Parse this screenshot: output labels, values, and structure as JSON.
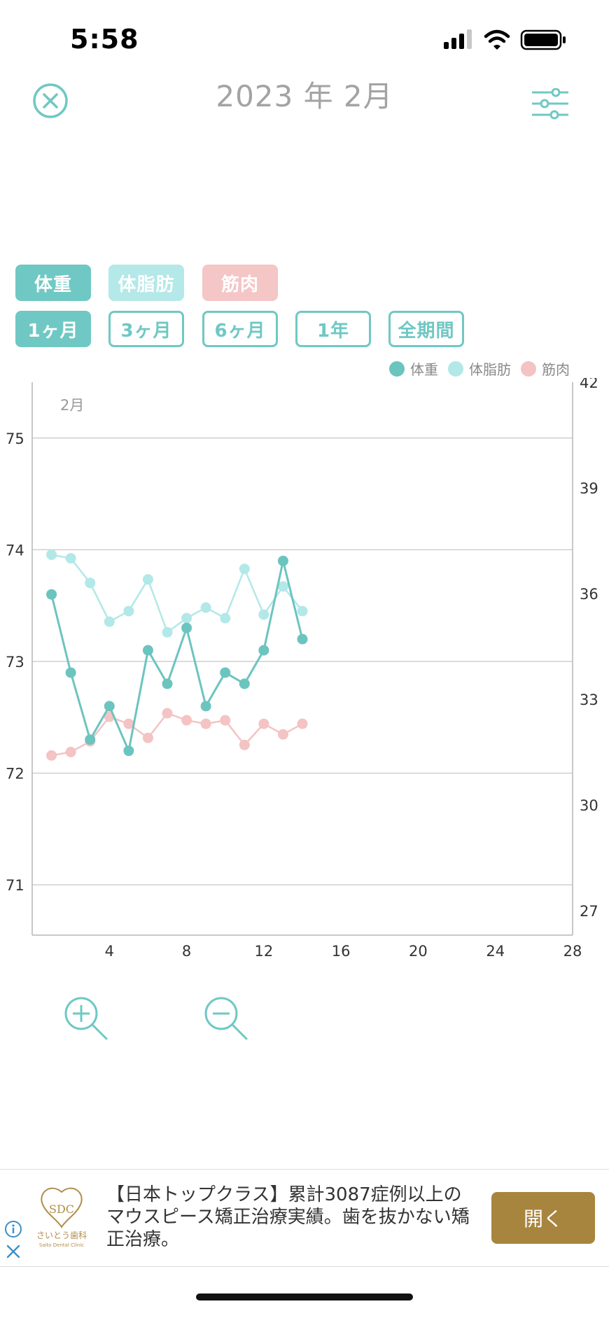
{
  "status": {
    "time": "5:58"
  },
  "header": {
    "title": "2023 年 2月"
  },
  "metric_chips": [
    {
      "label": "体重",
      "color": "#6fc8c3",
      "active": true
    },
    {
      "label": "体脂肪",
      "color": "#b5e8e8",
      "active": false
    },
    {
      "label": "筋肉",
      "color": "#f4c6c6",
      "active": false
    }
  ],
  "period_chips": [
    {
      "label": "1ヶ月",
      "active": true
    },
    {
      "label": "3ヶ月",
      "active": false
    },
    {
      "label": "6ヶ月",
      "active": false
    },
    {
      "label": "1年",
      "active": false
    },
    {
      "label": "全期間",
      "active": false
    }
  ],
  "colors": {
    "accent": "#6fc8c3",
    "weight": "#6cc4bf",
    "fat": "#b2e8e8",
    "muscle": "#f4c3c3",
    "ad_button": "#a8853e"
  },
  "chart_data": {
    "type": "line",
    "month_label": "2月",
    "xlim": [
      0,
      28
    ],
    "x_ticks": [
      4,
      8,
      12,
      16,
      20,
      24,
      28
    ],
    "y_left": {
      "ticks": [
        75,
        74,
        73,
        72,
        71
      ],
      "lim": [
        70.55,
        75.5
      ]
    },
    "y_right": {
      "ticks": [
        42,
        39,
        36,
        33,
        30,
        27
      ],
      "lim": [
        26.3,
        42
      ]
    },
    "legend_position": "top-right",
    "series": [
      {
        "name": "体重",
        "axis": "left",
        "color": "#6cc4bf",
        "x": [
          1,
          2,
          3,
          4,
          5,
          6,
          7,
          8,
          9,
          10,
          11,
          12,
          13,
          14
        ],
        "values": [
          73.6,
          72.9,
          72.3,
          72.6,
          72.2,
          73.1,
          72.8,
          73.3,
          72.6,
          72.9,
          72.8,
          73.1,
          73.9,
          73.2
        ]
      },
      {
        "name": "体脂肪",
        "axis": "right",
        "color": "#b2e8e8",
        "x": [
          1,
          2,
          3,
          4,
          5,
          6,
          7,
          8,
          9,
          10,
          11,
          12,
          13,
          14
        ],
        "values": [
          37.1,
          37.0,
          36.3,
          35.2,
          35.5,
          36.4,
          34.9,
          35.3,
          35.6,
          35.3,
          36.7,
          35.4,
          36.2,
          35.5
        ]
      },
      {
        "name": "筋肉",
        "axis": "right",
        "color": "#f4c3c3",
        "x": [
          1,
          2,
          3,
          4,
          5,
          6,
          7,
          8,
          9,
          10,
          11,
          12,
          13,
          14
        ],
        "values": [
          31.4,
          31.5,
          31.8,
          32.5,
          32.3,
          31.9,
          32.6,
          32.4,
          32.3,
          32.4,
          31.7,
          32.3,
          32.0,
          32.3
        ]
      }
    ]
  },
  "ad": {
    "text": "【日本トップクラス】累計3087症例以上のマウスピース矯正治療実績。歯を抜かない矯正治療。",
    "cta": "開く",
    "logo_name": "さいとう歯科",
    "logo_sub": "Saito Dental Clinic"
  }
}
